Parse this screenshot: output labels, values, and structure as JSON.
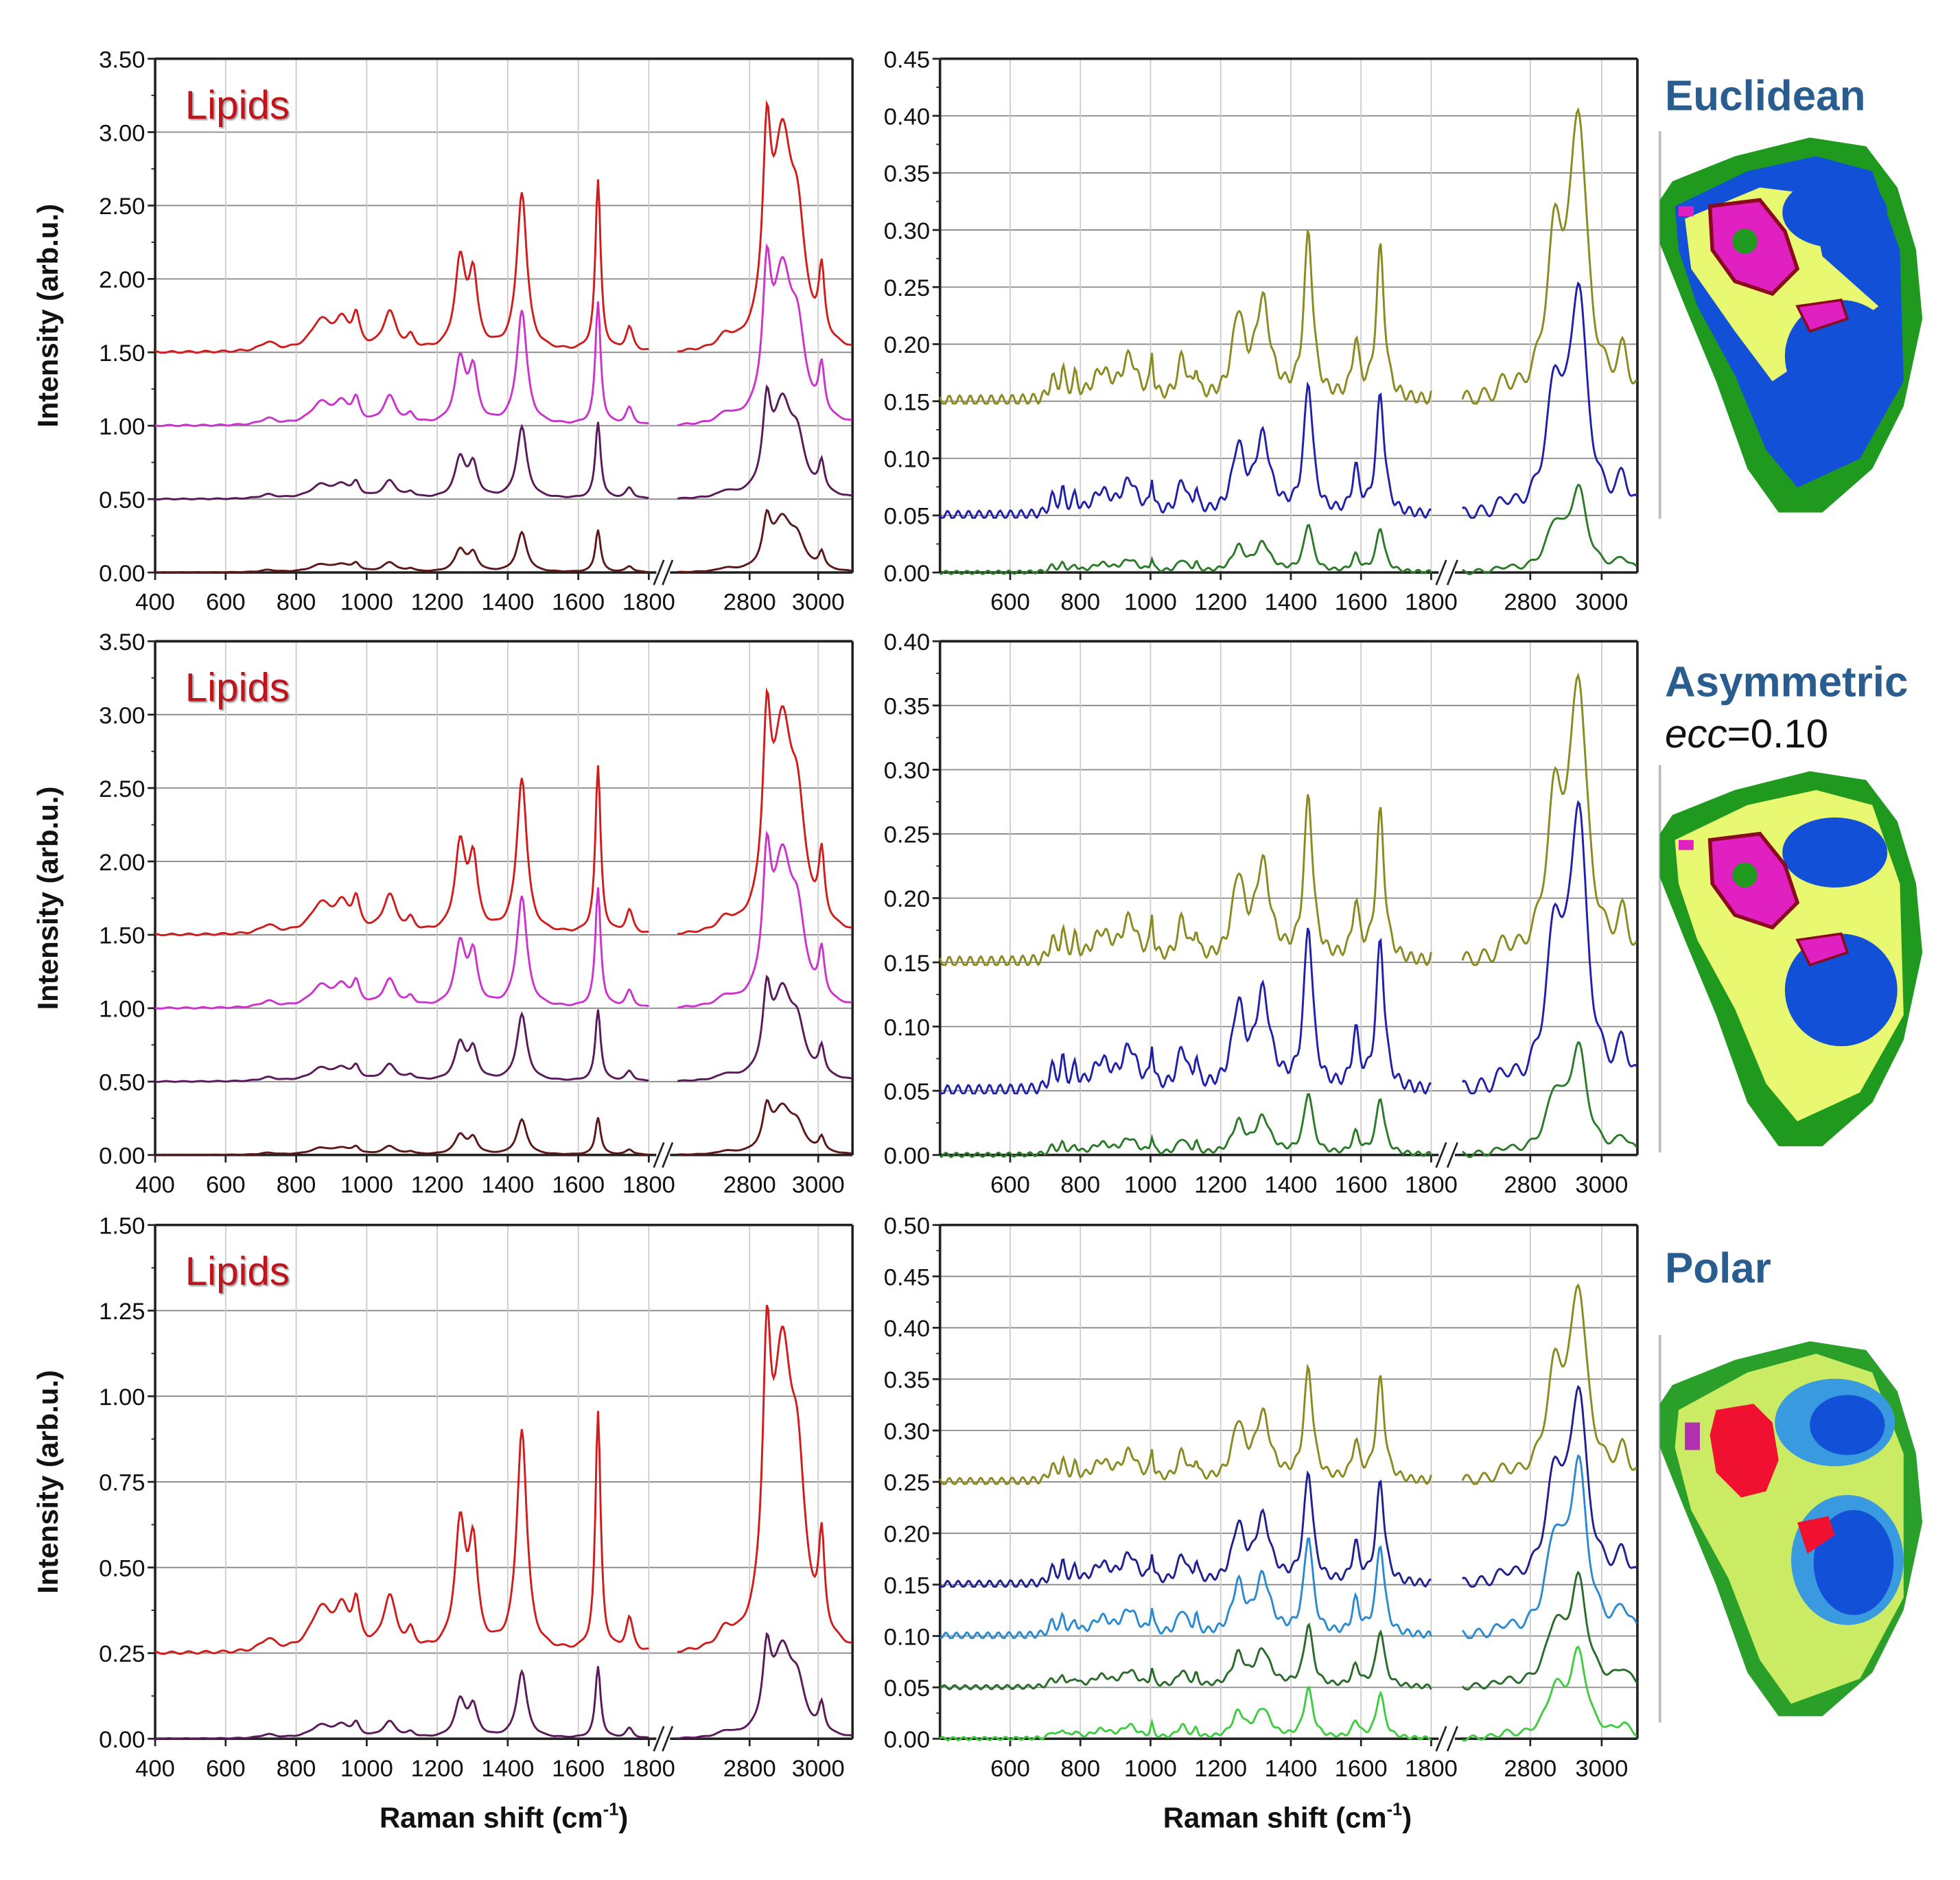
{
  "chart_data": {
    "type": "line",
    "xlabel": "Raman shift (cm",
    "xlabel_sup": "-1",
    "xlabel_end": ")",
    "ylabel": "Intensity (arb.u.)",
    "annotation": "Lipids",
    "profiles": {
      "lipid": [
        [
          720,
          0.06,
          25
        ],
        [
          870,
          0.2,
          35
        ],
        [
          930,
          0.18,
          25
        ],
        [
          970,
          0.2,
          12
        ],
        [
          1065,
          0.26,
          22
        ],
        [
          1125,
          0.08,
          12
        ],
        [
          1265,
          0.6,
          18
        ],
        [
          1302,
          0.48,
          15
        ],
        [
          1440,
          1.08,
          17
        ],
        [
          1656,
          1.16,
          9
        ],
        [
          1745,
          0.16,
          12
        ],
        [
          2730,
          0.08,
          25
        ],
        [
          2850,
          1.15,
          14
        ],
        [
          2895,
          1.35,
          35
        ],
        [
          2940,
          0.65,
          25
        ],
        [
          3010,
          0.45,
          10
        ]
      ],
      "cell": [
        [
          720,
          0.015,
          10
        ],
        [
          750,
          0.02,
          8
        ],
        [
          785,
          0.015,
          8
        ],
        [
          860,
          0.02,
          30
        ],
        [
          940,
          0.03,
          25
        ],
        [
          1004,
          0.03,
          5
        ],
        [
          1090,
          0.03,
          15
        ],
        [
          1130,
          0.02,
          6
        ],
        [
          1250,
          0.06,
          20
        ],
        [
          1320,
          0.07,
          25
        ],
        [
          1450,
          0.12,
          15
        ],
        [
          1585,
          0.04,
          12
        ],
        [
          1655,
          0.11,
          14
        ],
        [
          2730,
          0.01,
          20
        ],
        [
          2870,
          0.11,
          30
        ],
        [
          2935,
          0.2,
          28
        ],
        [
          3060,
          0.03,
          20
        ]
      ]
    },
    "charts": [
      {
        "id": "row1-left",
        "xticks": [
          "400",
          "600",
          "800",
          "1000",
          "1200",
          "1400",
          "1600",
          "1800",
          "2800",
          "3000"
        ],
        "ylim": [
          0,
          3.5
        ],
        "yticks": [
          "0.00",
          "0.50",
          "1.00",
          "1.50",
          "2.00",
          "2.50",
          "3.00",
          "3.50"
        ],
        "show_annotation": true,
        "series": [
          {
            "profile": "lipid",
            "offset": 1.5,
            "scale": 1.0,
            "color": "#d01c1c"
          },
          {
            "profile": "lipid",
            "offset": 1.0,
            "scale": 0.72,
            "color": "#cc33cc"
          },
          {
            "profile": "lipid",
            "offset": 0.5,
            "scale": 0.45,
            "color": "#5a1a5a"
          },
          {
            "profile": "lipid",
            "offset": 0.0,
            "scale": 0.25,
            "color": "#5a1818"
          }
        ]
      },
      {
        "id": "row1-mid",
        "xticks": [
          "600",
          "800",
          "1000",
          "1200",
          "1400",
          "1600",
          "1800",
          "2800",
          "3000"
        ],
        "ylim": [
          0,
          0.45
        ],
        "yticks": [
          "0.00",
          "0.05",
          "0.10",
          "0.15",
          "0.20",
          "0.25",
          "0.30",
          "0.35",
          "0.40",
          "0.45"
        ],
        "show_annotation": false,
        "series": [
          {
            "profile": "cell",
            "offset": 0.15,
            "scale": 1.2,
            "color": "#8a8a20"
          },
          {
            "profile": "cell",
            "offset": 0.05,
            "scale": 0.95,
            "color": "#2020a8"
          },
          {
            "profile": "cell",
            "offset": 0.0,
            "scale": 0.35,
            "color": "#2a7a2a"
          }
        ]
      },
      {
        "id": "row2-left",
        "xticks": [
          "400",
          "600",
          "800",
          "1000",
          "1200",
          "1400",
          "1600",
          "1800",
          "2800",
          "3000"
        ],
        "ylim": [
          0,
          3.5
        ],
        "yticks": [
          "0.00",
          "0.50",
          "1.00",
          "1.50",
          "2.00",
          "2.50",
          "3.00",
          "3.50"
        ],
        "show_annotation": true,
        "series": [
          {
            "profile": "lipid",
            "offset": 1.5,
            "scale": 0.98,
            "color": "#d01c1c"
          },
          {
            "profile": "lipid",
            "offset": 1.0,
            "scale": 0.7,
            "color": "#cc33cc"
          },
          {
            "profile": "lipid",
            "offset": 0.5,
            "scale": 0.42,
            "color": "#5a1a5a"
          },
          {
            "profile": "lipid",
            "offset": 0.0,
            "scale": 0.22,
            "color": "#5a1818"
          }
        ]
      },
      {
        "id": "row2-mid",
        "xticks": [
          "600",
          "800",
          "1000",
          "1200",
          "1400",
          "1600",
          "1800",
          "2800",
          "3000"
        ],
        "ylim": [
          0,
          0.4
        ],
        "yticks": [
          "0.00",
          "0.05",
          "0.10",
          "0.15",
          "0.20",
          "0.25",
          "0.30",
          "0.35",
          "0.40"
        ],
        "show_annotation": false,
        "series": [
          {
            "profile": "cell",
            "offset": 0.15,
            "scale": 1.05,
            "color": "#8a8a20"
          },
          {
            "profile": "cell",
            "offset": 0.05,
            "scale": 1.05,
            "color": "#2020a8"
          },
          {
            "profile": "cell",
            "offset": 0.0,
            "scale": 0.4,
            "color": "#2a7a2a"
          }
        ]
      },
      {
        "id": "row3-left",
        "xticks": [
          "400",
          "600",
          "800",
          "1000",
          "1200",
          "1400",
          "1600",
          "1800",
          "2800",
          "3000"
        ],
        "ylim": [
          0,
          1.5
        ],
        "yticks": [
          "0.00",
          "0.25",
          "0.50",
          "0.75",
          "1.00",
          "1.25",
          "1.50"
        ],
        "show_annotation": true,
        "series": [
          {
            "profile": "lipid",
            "offset": 0.25,
            "scale": 0.6,
            "color": "#d01c1c"
          },
          {
            "profile": "lipid",
            "offset": 0.0,
            "scale": 0.18,
            "color": "#5a1a5a"
          }
        ]
      },
      {
        "id": "row3-mid",
        "xticks": [
          "600",
          "800",
          "1000",
          "1200",
          "1400",
          "1600",
          "1800",
          "2800",
          "3000"
        ],
        "ylim": [
          0,
          0.5
        ],
        "yticks": [
          "0.00",
          "0.05",
          "0.10",
          "0.15",
          "0.20",
          "0.25",
          "0.30",
          "0.35",
          "0.40",
          "0.45",
          "0.50"
        ],
        "show_annotation": false,
        "series": [
          {
            "profile": "cell",
            "offset": 0.25,
            "scale": 0.9,
            "color": "#8a8a20"
          },
          {
            "profile": "cell",
            "offset": 0.15,
            "scale": 0.9,
            "color": "#202090"
          },
          {
            "profile": "cell",
            "offset": 0.1,
            "scale": 0.8,
            "color": "#2a8ad0"
          },
          {
            "profile": "cell",
            "offset": 0.05,
            "scale": 0.5,
            "color": "#2a6a2a"
          },
          {
            "profile": "cell",
            "offset": 0.0,
            "scale": 0.4,
            "color": "#40cc40"
          }
        ]
      }
    ]
  },
  "maps": [
    {
      "title": "Euclidean"
    },
    {
      "title": "Asymmetric",
      "param": "ecc",
      "param_value": "=0.10"
    },
    {
      "title": "Polar"
    }
  ],
  "colors": {
    "green": "#1f9a1f",
    "yellow": "#e8f870",
    "blue": "#1250d8",
    "lightblue": "#3a9ae0",
    "magenta": "#e020c0",
    "red": "#f01030",
    "darkred": "#8a0a20"
  }
}
